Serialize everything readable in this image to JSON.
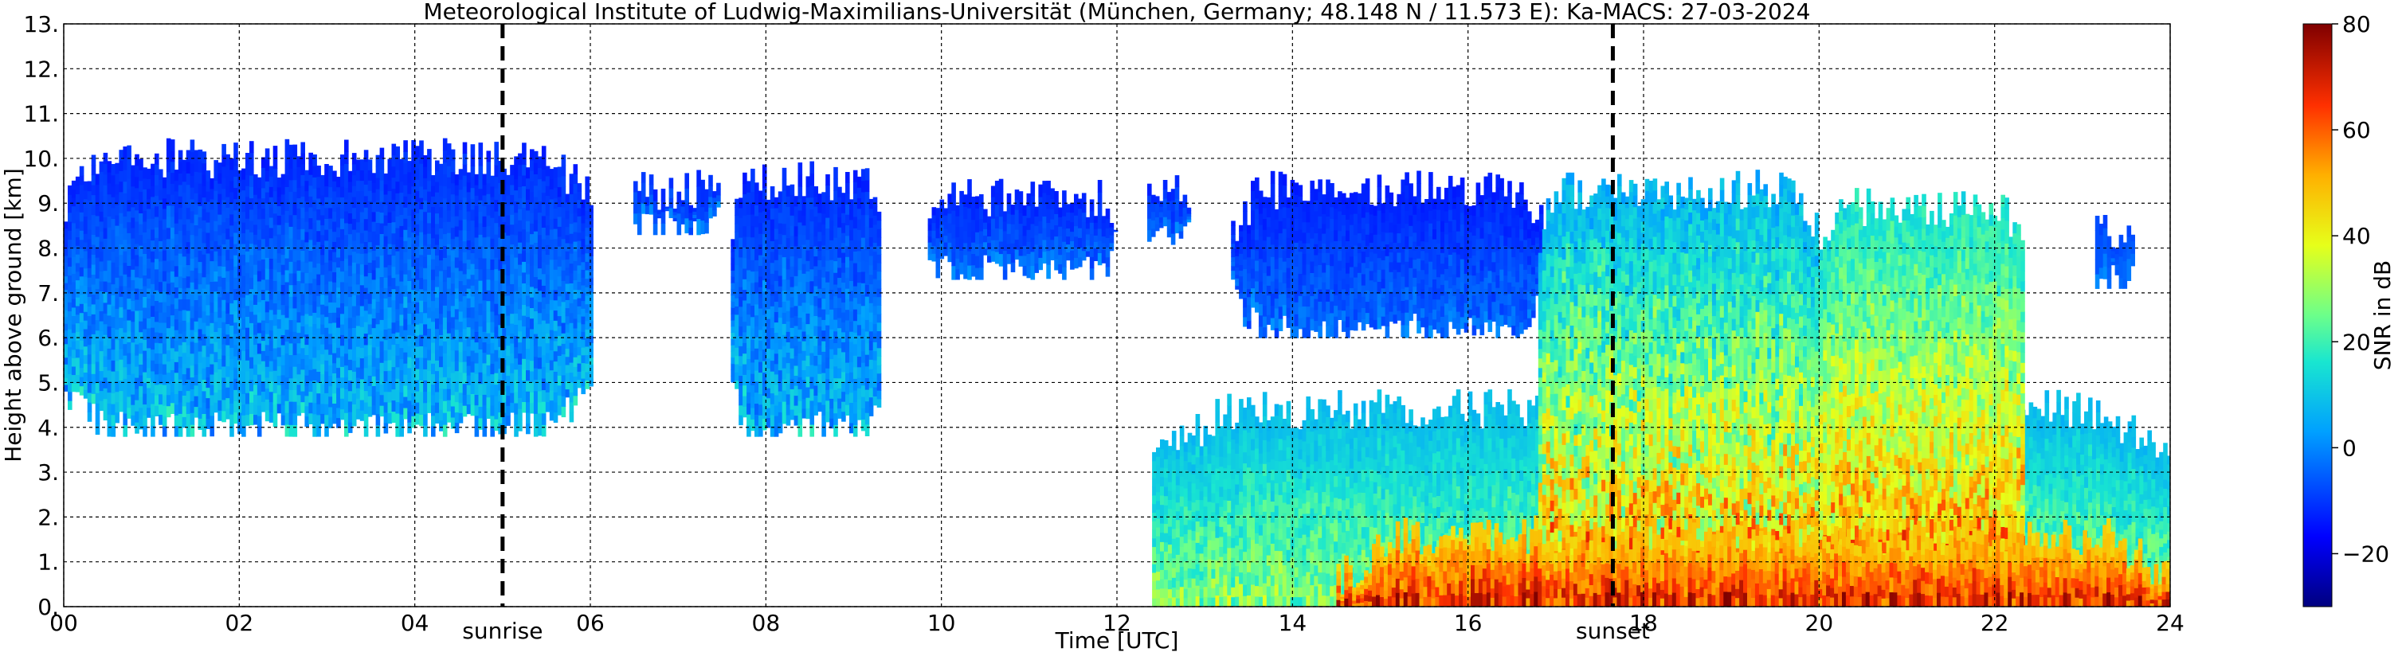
{
  "chart_data": {
    "type": "heatmap",
    "title": "Meteorological Institute of Ludwig-Maximilians-Universität (München, Germany; 48.148 N / 11.573 E):    Ka-MACS: 27-03-2024",
    "xlabel": "Time [UTC]",
    "ylabel": "Height above ground [km]",
    "xlim": [
      0,
      24
    ],
    "ylim": [
      0,
      13
    ],
    "x_ticks": [
      "00",
      "02",
      "04",
      "06",
      "08",
      "10",
      "12",
      "14",
      "16",
      "18",
      "20",
      "22",
      "24"
    ],
    "y_ticks": [
      "0.",
      "1.",
      "2.",
      "3.",
      "4.",
      "5.",
      "6.",
      "7.",
      "8.",
      "9.",
      "10.",
      "11.",
      "12.",
      "13."
    ],
    "grid": true,
    "markers": [
      {
        "label": "sunrise",
        "x": 5.0
      },
      {
        "label": "sunset",
        "x": 17.65
      }
    ],
    "colorbar": {
      "label": "SNR in dB",
      "min": -30,
      "max": 80,
      "ticks": [
        "80",
        "60",
        "40",
        "20",
        "0",
        "−20"
      ],
      "colormap": "jet"
    },
    "cloud_regions": [
      {
        "t_start": 0.0,
        "t_end": 6.0,
        "base_km": 3.8,
        "top_km": 10.0,
        "snr_db": "-15 to 15"
      },
      {
        "t_start": 6.4,
        "t_end": 7.5,
        "base_km": 8.3,
        "top_km": 9.3,
        "snr_db": "-15 to 0"
      },
      {
        "t_start": 7.6,
        "t_end": 9.3,
        "base_km": 3.8,
        "top_km": 9.5,
        "snr_db": "-15 to 15"
      },
      {
        "t_start": 9.8,
        "t_end": 12.0,
        "base_km": 7.3,
        "top_km": 9.1,
        "snr_db": "-15 to 0"
      },
      {
        "t_start": 12.3,
        "t_end": 12.8,
        "base_km": 8.0,
        "top_km": 9.3,
        "snr_db": "-15 to 0"
      },
      {
        "t_start": 12.4,
        "t_end": 24.0,
        "base_km": 0.0,
        "top_km": 4.4,
        "snr_db": "5 to 35"
      },
      {
        "t_start": 13.3,
        "t_end": 16.9,
        "base_km": 6.0,
        "top_km": 9.3,
        "snr_db": "-15 to 0"
      },
      {
        "t_start": 16.8,
        "t_end": 20.0,
        "base_km": 0.0,
        "top_km": 9.3,
        "snr_db": "0 to 70"
      },
      {
        "t_start": 20.0,
        "t_end": 22.3,
        "base_km": 0.0,
        "top_km": 8.9,
        "snr_db": "10 to 70"
      },
      {
        "t_start": 23.1,
        "t_end": 23.6,
        "base_km": 7.1,
        "top_km": 8.4,
        "snr_db": "-10 to 0"
      },
      {
        "t_start": 14.5,
        "t_end": 24.0,
        "base_km": 0.0,
        "top_km": 1.6,
        "snr_db": "40 to 75"
      }
    ]
  }
}
